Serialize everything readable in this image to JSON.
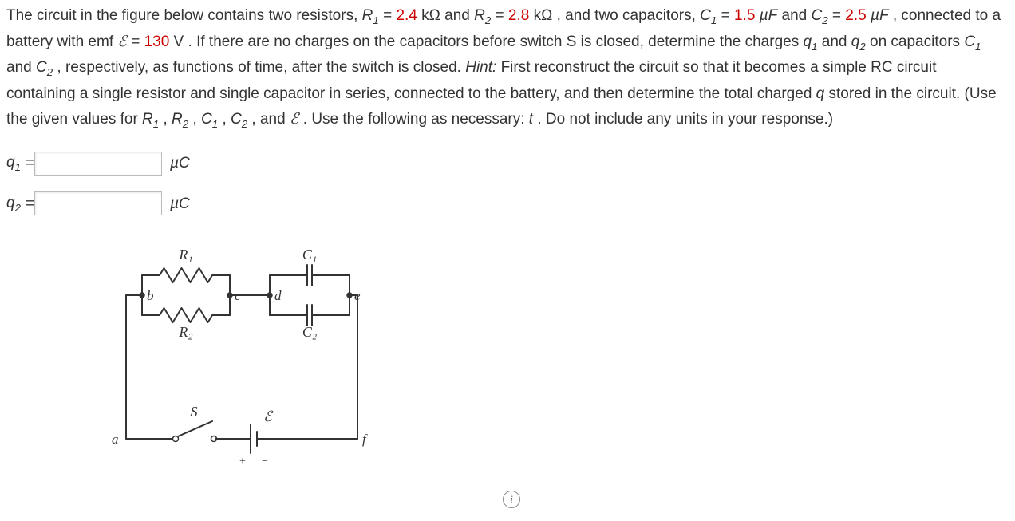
{
  "problem": {
    "line1_a": "The circuit in the figure below contains two resistors, ",
    "R1_sym": "R",
    "R1_sub": "1",
    "eq": " = ",
    "R1_val": "2.4",
    "kOhm": " kΩ",
    "and": " and ",
    "R2_sym": "R",
    "R2_sub": "2",
    "R2_val": "2.8",
    "line1_b": ", and two capacitors, ",
    "C1_sym": "C",
    "C1_sub": "1",
    "C1_val": "1.5",
    "uF": " µF",
    "line2_a": "",
    "C2_sym": "C",
    "C2_sub": "2",
    "C2_val": "2.5",
    "line2_b": ", connected to a battery with emf ",
    "emf_sym": "ℰ",
    "emf_val": "130",
    "V": " V",
    "line2_c": ". If there are no charges on the capacitors before switch S is closed,",
    "line3": "determine the charges ",
    "q1_sym": "q",
    "q1_sub": "1",
    "q2_sym": "q",
    "q2_sub": "2",
    "line3_b": " on capacitors ",
    "line3_c": ", respectively, as functions of time, after the switch is closed. ",
    "hint_label": "Hint:",
    "line4": "First reconstruct the circuit so that it becomes a simple RC circuit containing a single resistor and single capacitor in series,",
    "line5_a": "connected to the battery, and then determine the total charged ",
    "q_tot": "q",
    "line5_b": " stored in the circuit. (Use the given values for ",
    "comma": ", ",
    "line6_a": "and ",
    "line6_b": ". Use the following as necessary: ",
    "t_sym": "t",
    "line6_c": ". Do not include any units in your response.)"
  },
  "answers": {
    "q1_label": "q",
    "q1_sub": "1",
    "q2_label": "q",
    "q2_sub": "2",
    "eq": " = ",
    "unit": "µC"
  },
  "diagram": {
    "node_a": "a",
    "node_b": "b",
    "node_c": "c",
    "node_d": "d",
    "node_e": "e",
    "node_f": "f",
    "R1": "R₁",
    "R2": "R₂",
    "C1": "C₁",
    "C2": "C₂",
    "S": "S",
    "emf": "ℰ",
    "plus": "+",
    "minus": "−",
    "stroke": "#333333",
    "node_font": "italic 17px Georgia, serif",
    "label_font": "italic 18px Georgia, serif",
    "small_font": "14px Georgia, serif"
  },
  "info_icon": "i"
}
